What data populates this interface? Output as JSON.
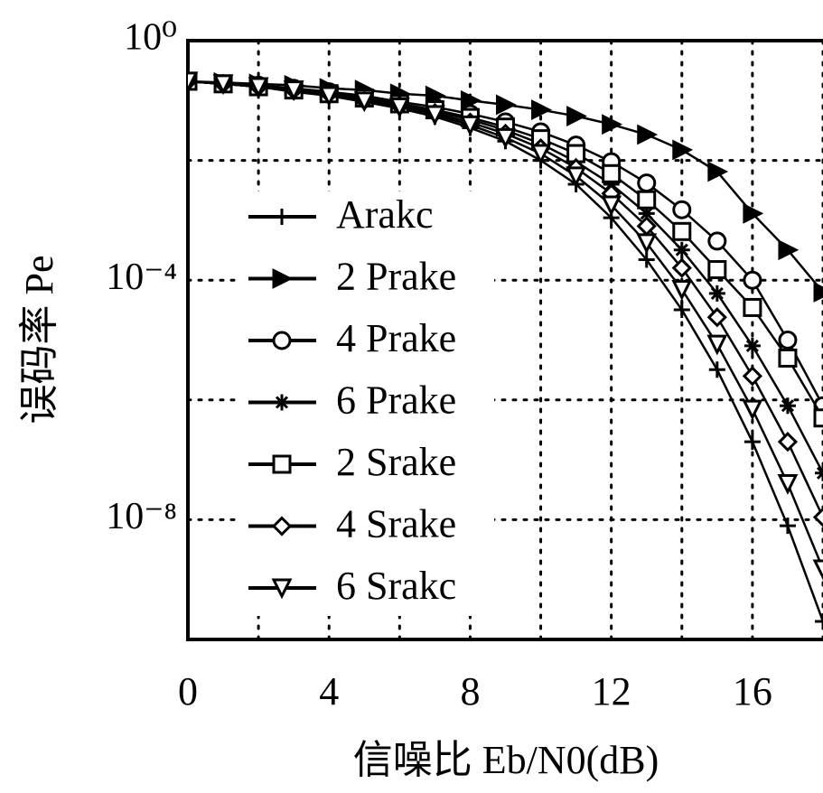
{
  "chart_data": {
    "type": "line",
    "log_y": true,
    "grid": true,
    "grid_style": "dotted",
    "xlabel": "信噪比 Eb/N0(dB)",
    "ylabel": "误码率 Pe",
    "x": [
      0,
      1,
      2,
      3,
      4,
      5,
      6,
      7,
      8,
      9,
      10,
      11,
      12,
      13,
      14,
      15,
      16,
      17,
      18
    ],
    "xlim": [
      0,
      18
    ],
    "xticks": [
      0,
      4,
      8,
      12,
      16
    ],
    "xgrid_minor": [
      2,
      6,
      10,
      14,
      18
    ],
    "ylim": [
      1e-10,
      1
    ],
    "yticks": [
      {
        "value": 1,
        "label": "10⁰"
      },
      {
        "value": 0.0001,
        "label": "10⁻⁴"
      },
      {
        "value": 1e-08,
        "label": "10⁻⁸"
      }
    ],
    "ygrid_minor": [
      0.01,
      1e-06,
      1e-10
    ],
    "legend": "left",
    "series": [
      {
        "name": "Arakc",
        "color": "#000000",
        "marker": "plus",
        "values": [
          0.21,
          0.19,
          0.17,
          0.14,
          0.12,
          0.095,
          0.074,
          0.054,
          0.035,
          0.021,
          0.01,
          0.004,
          0.0011,
          0.00022,
          3.2e-05,
          3.2e-06,
          2e-07,
          7.9e-09,
          2e-10
        ]
      },
      {
        "name": "2 Prake",
        "color": "#000000",
        "marker": "triangle-right",
        "values": [
          0.21,
          0.2,
          0.19,
          0.18,
          0.16,
          0.15,
          0.13,
          0.12,
          0.1,
          0.085,
          0.07,
          0.055,
          0.04,
          0.027,
          0.015,
          0.0065,
          0.0013,
          0.00032,
          6.3e-05
        ]
      },
      {
        "name": "4 Prake",
        "color": "#000000",
        "marker": "circle",
        "values": [
          0.21,
          0.19,
          0.18,
          0.16,
          0.14,
          0.12,
          0.095,
          0.078,
          0.06,
          0.044,
          0.03,
          0.018,
          0.0095,
          0.0042,
          0.0015,
          0.00045,
          0.0001,
          1e-05,
          8e-07
        ]
      },
      {
        "name": "6 Prake",
        "color": "#000000",
        "marker": "star",
        "values": [
          0.21,
          0.19,
          0.17,
          0.15,
          0.13,
          0.11,
          0.086,
          0.066,
          0.048,
          0.032,
          0.019,
          0.0095,
          0.004,
          0.0013,
          0.00032,
          6e-05,
          8e-06,
          8e-07,
          6e-08
        ]
      },
      {
        "name": "2 Srake",
        "color": "#000000",
        "marker": "square",
        "values": [
          0.21,
          0.19,
          0.17,
          0.15,
          0.13,
          0.11,
          0.088,
          0.07,
          0.052,
          0.036,
          0.023,
          0.013,
          0.006,
          0.0022,
          0.00065,
          0.00015,
          3.5e-05,
          5e-06,
          5e-07
        ]
      },
      {
        "name": "4 Srake",
        "color": "#000000",
        "marker": "diamond",
        "values": [
          0.21,
          0.19,
          0.17,
          0.15,
          0.13,
          0.1,
          0.082,
          0.062,
          0.043,
          0.028,
          0.016,
          0.0075,
          0.0028,
          0.0008,
          0.00016,
          2.4e-05,
          2.5e-06,
          2e-07,
          1.1e-08
        ]
      },
      {
        "name": "6 Srakc",
        "color": "#000000",
        "marker": "triangle-down",
        "values": [
          0.21,
          0.19,
          0.17,
          0.15,
          0.12,
          0.098,
          0.078,
          0.058,
          0.039,
          0.024,
          0.013,
          0.0055,
          0.0018,
          0.00042,
          7e-05,
          8.5e-06,
          7e-07,
          4e-08,
          1.5e-09
        ]
      }
    ]
  }
}
